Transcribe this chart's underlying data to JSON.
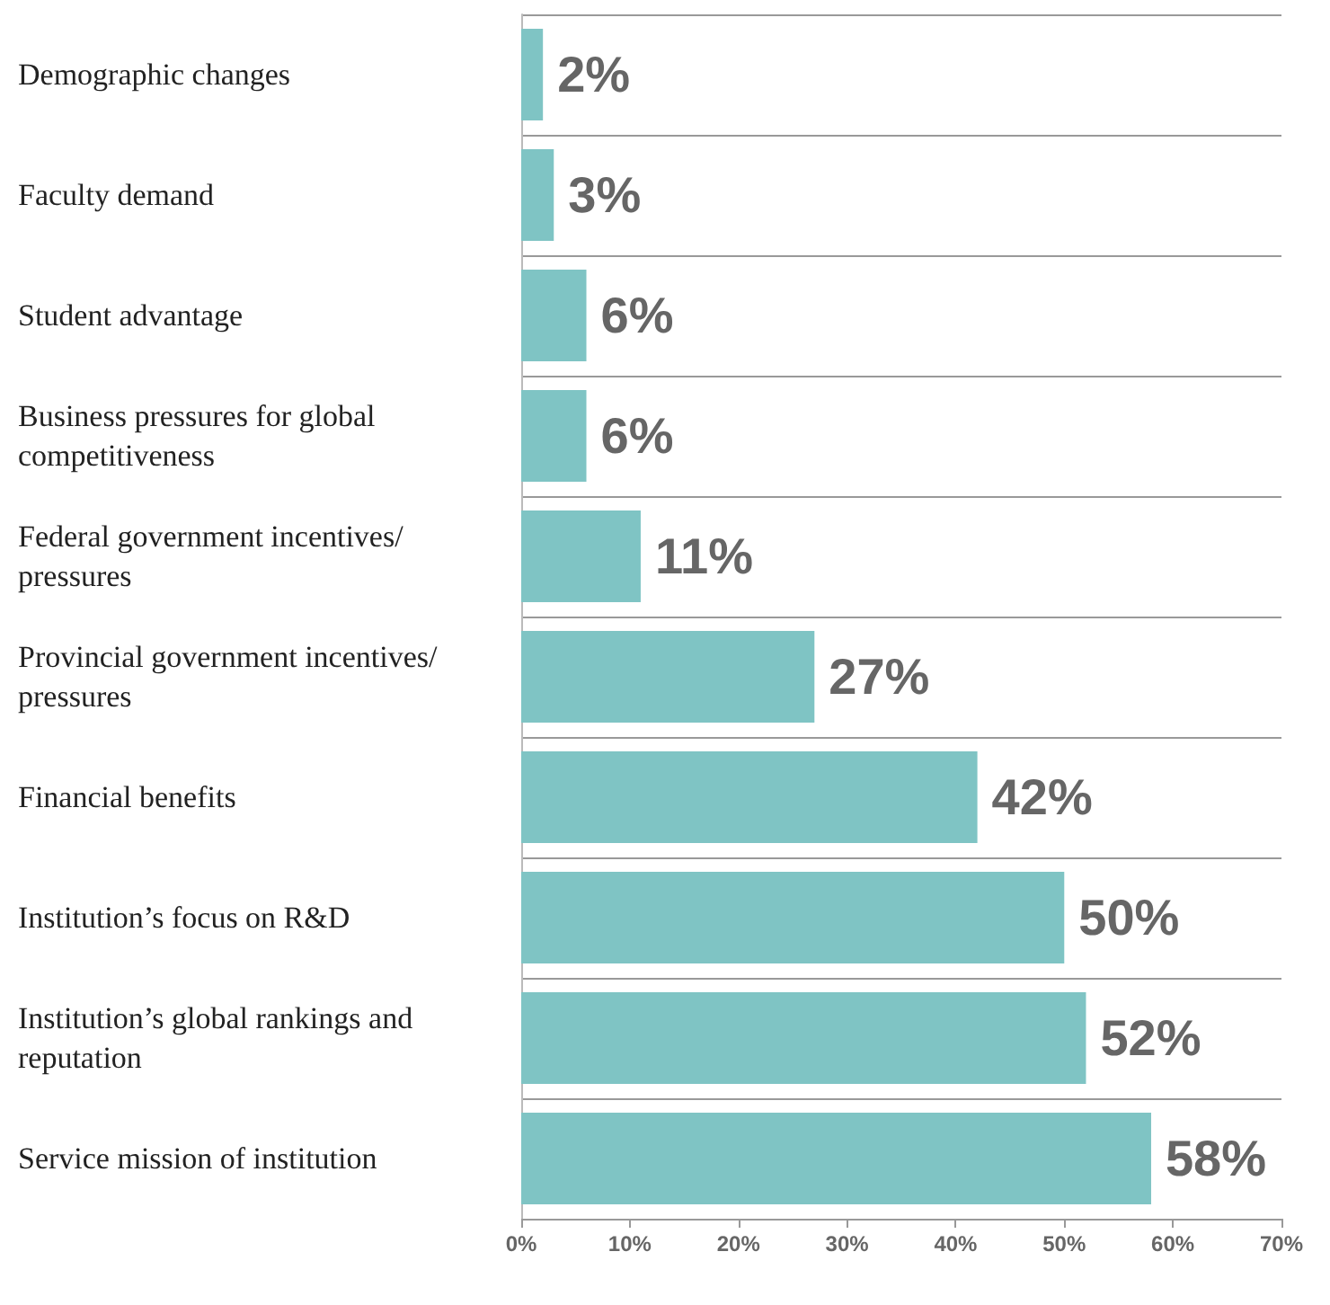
{
  "chart_data": {
    "type": "bar",
    "orientation": "horizontal",
    "categories": [
      "Demographic changes",
      "Faculty demand",
      "Student advantage",
      "Business pressures for global competitiveness",
      "Federal government incentives/pressures",
      "Provincial government incentives/pressures",
      "Financial benefits",
      "Institution’s focus on R&D",
      "Institution’s global rankings and reputation",
      "Service mission of institution"
    ],
    "values": [
      2,
      3,
      6,
      6,
      11,
      27,
      42,
      50,
      52,
      58
    ],
    "value_labels": [
      "2%",
      "3%",
      "6%",
      "6%",
      "11%",
      "27%",
      "42%",
      "50%",
      "52%",
      "58%"
    ],
    "color": "#7fc4c4",
    "xlim": [
      0,
      70
    ],
    "xticks": [
      {
        "value": 0,
        "label": "0%"
      },
      {
        "value": 10,
        "label": "10%"
      },
      {
        "value": 20,
        "label": "20%"
      },
      {
        "value": 30,
        "label": "30%"
      },
      {
        "value": 40,
        "label": "40%"
      },
      {
        "value": 50,
        "label": "50%"
      },
      {
        "value": 60,
        "label": "60%"
      },
      {
        "value": 70,
        "label": "70%"
      }
    ],
    "grid": "y"
  }
}
